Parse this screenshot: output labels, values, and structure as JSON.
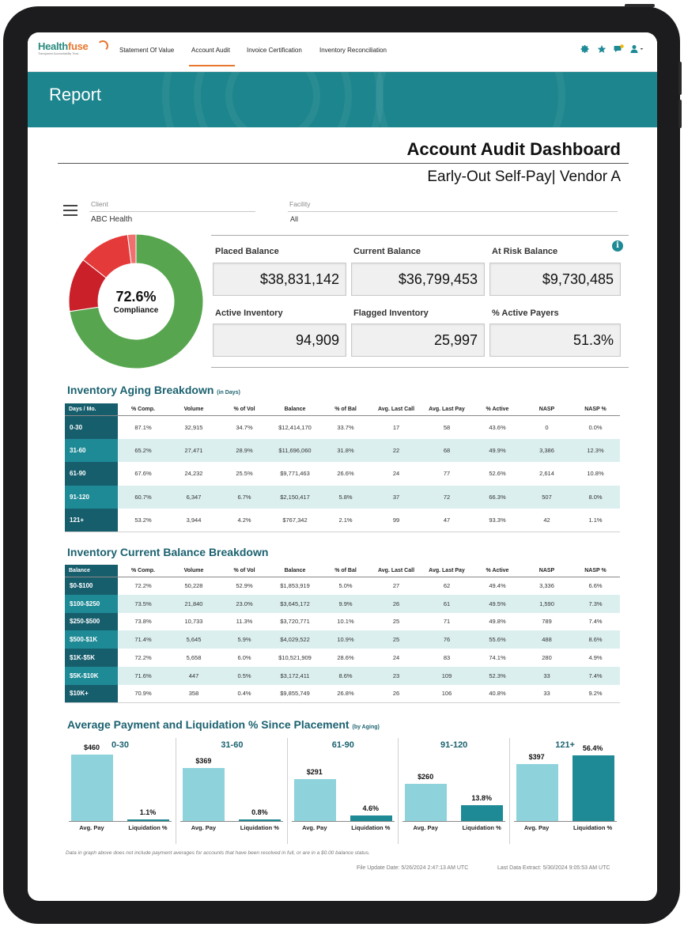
{
  "brand": {
    "name_a": "Health",
    "name_b": "fuse",
    "tagline": "Transparent Accountability Trust"
  },
  "nav": {
    "items": [
      "Statement Of Value",
      "Account Audit",
      "Invoice Certification",
      "Inventory Reconciliation"
    ],
    "active": "Account Audit",
    "icons": [
      "gear-icon",
      "star-icon",
      "chat-badge-icon",
      "user-icon"
    ],
    "accent": "#e8772e"
  },
  "banner": {
    "title": "Report",
    "color": "#1d858d"
  },
  "dashboard": {
    "title": "Account Audit Dashboard",
    "subtitle": "Early-Out Self-Pay| Vendor A"
  },
  "filters": {
    "client": {
      "label": "Client",
      "value": "ABC Health"
    },
    "facility": {
      "label": "Facility",
      "value": "All"
    }
  },
  "compliance": {
    "value": "72.6%",
    "label": "Compliance",
    "segments": [
      {
        "name": "compliant",
        "fraction": 0.726,
        "color": "#57a64f"
      },
      {
        "name": "dark-red",
        "fraction": 0.13,
        "color": "#c9202a"
      },
      {
        "name": "red",
        "fraction": 0.124,
        "color": "#e53a3a"
      },
      {
        "name": "light-red",
        "fraction": 0.02,
        "color": "#f07070"
      }
    ]
  },
  "kpis": [
    {
      "label": "Placed Balance",
      "value": "$38,831,142"
    },
    {
      "label": "Current Balance",
      "value": "$36,799,453"
    },
    {
      "label": "At Risk Balance",
      "value": "$9,730,485"
    },
    {
      "label": "Active Inventory",
      "value": "94,909"
    },
    {
      "label": "Flagged Inventory",
      "value": "25,997"
    },
    {
      "label": "% Active Payers",
      "value": "51.3%"
    }
  ],
  "aging": {
    "title": "Inventory Aging Breakdown",
    "title_note": "(in Days)",
    "headers": [
      "Days / Mo.",
      "% Comp.",
      "Volume",
      "% of Vol",
      "Balance",
      "% of Bal",
      "Avg. Last Call",
      "Avg. Last Pay",
      "% Active",
      "NASP",
      "NASP %"
    ],
    "rows": [
      [
        "0-30",
        "87.1%",
        "32,915",
        "34.7%",
        "$12,414,170",
        "33.7%",
        "17",
        "58",
        "43.6%",
        "0",
        "0.0%"
      ],
      [
        "31-60",
        "65.2%",
        "27,471",
        "28.9%",
        "$11,696,060",
        "31.8%",
        "22",
        "68",
        "49.9%",
        "3,386",
        "12.3%"
      ],
      [
        "61-90",
        "67.6%",
        "24,232",
        "25.5%",
        "$9,771,463",
        "26.6%",
        "24",
        "77",
        "52.6%",
        "2,614",
        "10.8%"
      ],
      [
        "91-120",
        "60.7%",
        "6,347",
        "6.7%",
        "$2,150,417",
        "5.8%",
        "37",
        "72",
        "66.3%",
        "507",
        "8.0%"
      ],
      [
        "121+",
        "53.2%",
        "3,944",
        "4.2%",
        "$767,342",
        "2.1%",
        "99",
        "47",
        "93.3%",
        "42",
        "1.1%"
      ]
    ]
  },
  "balance": {
    "title": "Inventory Current Balance Breakdown",
    "headers": [
      "Balance",
      "% Comp.",
      "Volume",
      "% of Vol",
      "Balance",
      "% of Bal",
      "Avg. Last Call",
      "Avg. Last Pay",
      "% Active",
      "NASP",
      "NASP %"
    ],
    "rows": [
      [
        "$0-$100",
        "72.2%",
        "50,228",
        "52.9%",
        "$1,853,919",
        "5.0%",
        "27",
        "62",
        "49.4%",
        "3,336",
        "6.6%"
      ],
      [
        "$100-$250",
        "73.5%",
        "21,840",
        "23.0%",
        "$3,645,172",
        "9.9%",
        "26",
        "61",
        "49.5%",
        "1,590",
        "7.3%"
      ],
      [
        "$250-$500",
        "73.8%",
        "10,733",
        "11.3%",
        "$3,720,771",
        "10.1%",
        "25",
        "71",
        "49.8%",
        "789",
        "7.4%"
      ],
      [
        "$500-$1K",
        "71.4%",
        "5,645",
        "5.9%",
        "$4,029,522",
        "10.9%",
        "25",
        "76",
        "55.6%",
        "488",
        "8.6%"
      ],
      [
        "$1K-$5K",
        "72.2%",
        "5,658",
        "6.0%",
        "$10,521,909",
        "28.6%",
        "24",
        "83",
        "74.1%",
        "280",
        "4.9%"
      ],
      [
        "$5K-$10K",
        "71.6%",
        "447",
        "0.5%",
        "$3,172,411",
        "8.6%",
        "23",
        "109",
        "52.3%",
        "33",
        "7.4%"
      ],
      [
        "$10K+",
        "70.9%",
        "358",
        "0.4%",
        "$9,855,749",
        "26.8%",
        "26",
        "106",
        "40.8%",
        "33",
        "9.2%"
      ]
    ]
  },
  "payment_section": {
    "title": "Average Payment and Liquidation % Since Placement",
    "title_note": "(by Aging)"
  },
  "chart_data": {
    "type": "bar",
    "groups": [
      "0-30",
      "31-60",
      "61-90",
      "91-120",
      "121+"
    ],
    "bar_labels": [
      "Avg. Pay",
      "Liquidation %"
    ],
    "avg_pay": [
      460,
      369,
      291,
      260,
      397
    ],
    "avg_pay_labels": [
      "$460",
      "$369",
      "$291",
      "$260",
      "$397"
    ],
    "liquidation_pct": [
      1.1,
      0.8,
      4.6,
      13.8,
      56.4
    ],
    "liquidation_labels": [
      "1.1%",
      "0.8%",
      "4.6%",
      "13.8%",
      "56.4%"
    ],
    "colors": {
      "avg_pay": "#8ed3dc",
      "liquidation": "#1e8a96"
    }
  },
  "footer": {
    "note": "Data in graph above does not include payment averages for accounts that have been resolved in full, or are in a $0.00 balance status.",
    "file_update": "File Update Date:   5/26/2024 2:47:13 AM UTC",
    "last_extract": "Last Data Extract:   5/30/2024 9:05:53 AM UTC"
  }
}
